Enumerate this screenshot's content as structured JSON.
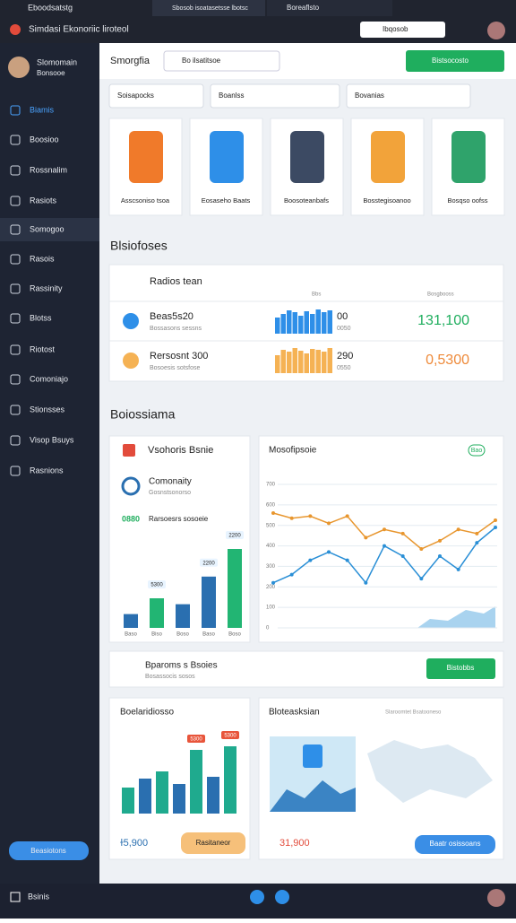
{
  "window": {
    "title": "Eboodsatstg",
    "tabs": [
      "Sbosob isoatasetsse lbotsc",
      "Boreaflsto"
    ]
  },
  "browser": {
    "title": "Simdasi Ekonoriic liroteol",
    "search": "Ibqosob"
  },
  "sidebar": {
    "user": "Slomomain",
    "role": "Bonsooe",
    "items": [
      "Biamis",
      "Boosioo",
      "Rossnalim",
      "Rasiots",
      "Somogoo",
      "Rasois",
      "Rassinity",
      "Blotss",
      "Riotost",
      "Comoniajo",
      "Stionsses",
      "Visop Bsuys",
      "Rasnions"
    ],
    "button": "Beasiotons"
  },
  "header": {
    "title": "Smorgfia",
    "search": "Bo ilsatitsoe",
    "button": "Bistsocosto"
  },
  "filters": [
    "Soisapocks",
    "Boanlss",
    "Bovanias"
  ],
  "products": [
    "Asscsoniso tsoa",
    "Eosaseho Baats",
    "Boosoteanbafs",
    "Bosstegisoanoo",
    "Bosqso oofss"
  ],
  "section1": {
    "title": "Blsiofoses",
    "card": {
      "title": "Radios tean",
      "col1": "Bbs",
      "col2": "Bosgbooss",
      "rows": [
        {
          "name": "Beas5s20",
          "sub": "Bossasons sessns",
          "value": "00",
          "sub_value": "0050",
          "total": "131,100",
          "bars": [
            18,
            22,
            26,
            24,
            20,
            25,
            22,
            27,
            24,
            26
          ]
        },
        {
          "name": "Rersosnt 300",
          "sub": "Bosoesis sotsfose",
          "value": "290",
          "sub_value": "0550",
          "total": "0,5300",
          "bars": [
            20,
            26,
            24,
            28,
            25,
            22,
            27,
            26,
            24,
            28
          ]
        }
      ]
    }
  },
  "section2": {
    "title": "Boiossiama",
    "vehicle_card": {
      "title": "Vsohoris Bsnie",
      "item": "Comonaity",
      "item_sub": "Gosnstsonorso",
      "stat": "0880",
      "stat_label": "Rarsoesrs sosoeie",
      "chart": {
        "categories": [
          "Baso",
          "Biso",
          "Boso",
          "Baso",
          "Boso"
        ],
        "values": [
          14,
          30,
          24,
          52,
          80
        ],
        "value_labels": [
          null,
          "5300",
          null,
          "2200",
          "2200"
        ]
      }
    },
    "line_chart": {
      "title": "Mosofipsoie",
      "toggle": "Bao",
      "ylim": [
        0,
        700
      ],
      "yticks": [
        0,
        100,
        200,
        300,
        400,
        500,
        600,
        700
      ],
      "series": [
        {
          "color": "#e8962e",
          "values": [
            560,
            535,
            545,
            510,
            545,
            440,
            480,
            460,
            385,
            425,
            480,
            460,
            525
          ]
        },
        {
          "color": "#2a8fd6",
          "values": [
            220,
            260,
            330,
            370,
            330,
            220,
            400,
            350,
            240,
            350,
            285,
            415,
            490
          ]
        }
      ]
    }
  },
  "banner": {
    "title": "Bparoms s Bsoies",
    "sub": "Bosassocis sosos",
    "button": "Bistobbs"
  },
  "bottom": {
    "left": {
      "title": "Boelaridiosso",
      "values": [
        29,
        39,
        47,
        33,
        71,
        41,
        75
      ],
      "value_labels": [
        null,
        null,
        null,
        null,
        "5300",
        null,
        "5300"
      ],
      "stat": "ɫ5,900",
      "button": "Rasitaneor"
    },
    "right": {
      "title": "Bloteasksian",
      "subtitle": "Slaroomtet Bsatooneso",
      "stat": "31,900",
      "button": "Baatr osissoans"
    }
  },
  "taskbar": {
    "label": "Bsinis"
  }
}
